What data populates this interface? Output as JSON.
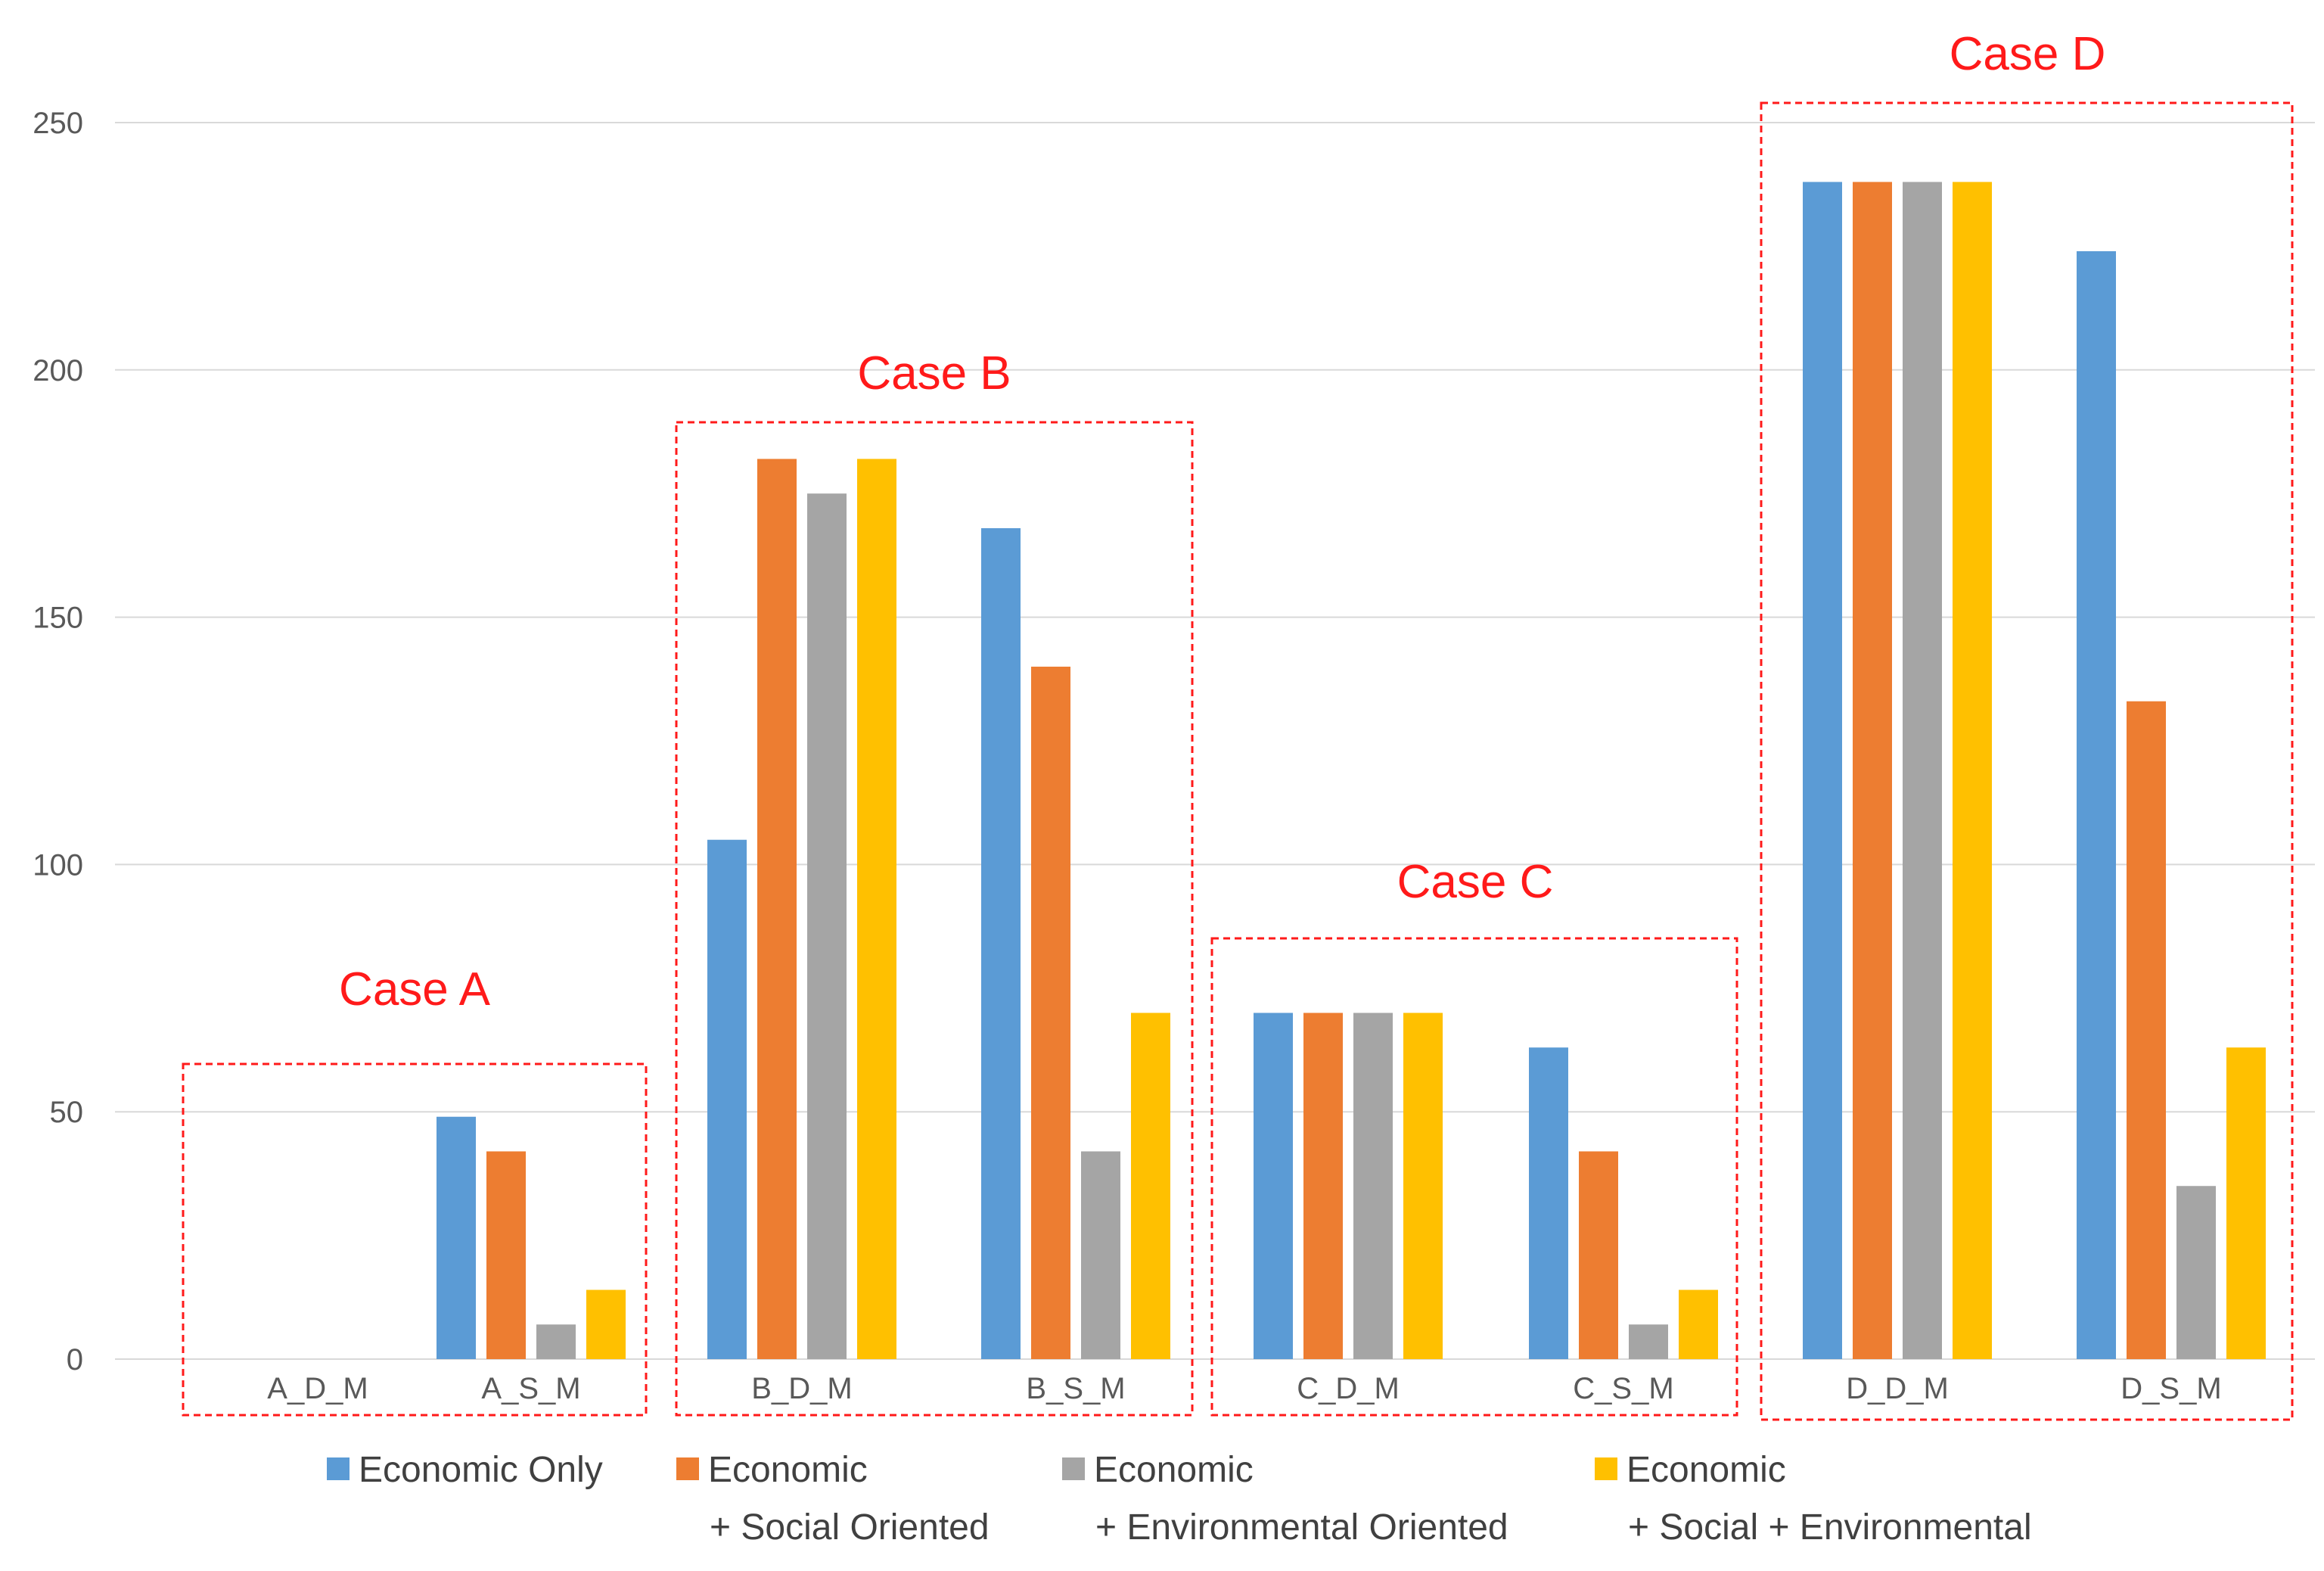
{
  "chart_data": {
    "type": "bar",
    "categories": [
      "A_D_M",
      "A_S_M",
      "B_D_M",
      "B_S_M",
      "C_D_M",
      "C_S_M",
      "D_D_M",
      "D_S_M"
    ],
    "series": [
      {
        "name": "Economic Only",
        "legend_lines": [
          "Economic Only"
        ],
        "color": "#5b9bd5",
        "values": [
          0,
          49,
          105,
          168,
          70,
          63,
          238,
          224
        ]
      },
      {
        "name": "Economic + Social Oriented",
        "legend_lines": [
          "Economic",
          "+ Social Oriented"
        ],
        "color": "#ed7d31",
        "values": [
          0,
          42,
          182,
          140,
          70,
          42,
          238,
          133
        ]
      },
      {
        "name": "Economic + Environmental Oriented",
        "legend_lines": [
          "Economic",
          "+ Environmental Oriented"
        ],
        "color": "#a5a5a5",
        "values": [
          0,
          7,
          175,
          42,
          70,
          7,
          238,
          35
        ]
      },
      {
        "name": "Economic + Social + Environmental",
        "legend_lines": [
          "Economic",
          "+ Social + Environmental"
        ],
        "color": "#ffc000",
        "values": [
          0,
          14,
          182,
          70,
          70,
          14,
          238,
          63
        ]
      }
    ],
    "ylim": [
      0,
      250
    ],
    "yticks": [
      0,
      50,
      100,
      150,
      200,
      250
    ],
    "grid": true,
    "legend_position": "bottom",
    "annotations": [
      {
        "label": "Case A",
        "categories": [
          "A_D_M",
          "A_S_M"
        ]
      },
      {
        "label": "Case B",
        "categories": [
          "B_D_M",
          "B_S_M"
        ]
      },
      {
        "label": "Case C",
        "categories": [
          "C_D_M",
          "C_S_M"
        ]
      },
      {
        "label": "Case D",
        "categories": [
          "D_D_M",
          "D_S_M"
        ]
      }
    ],
    "annotation_color": "#ff1a1a",
    "grid_color": "#d9d9d9",
    "text_color": "#595959"
  }
}
